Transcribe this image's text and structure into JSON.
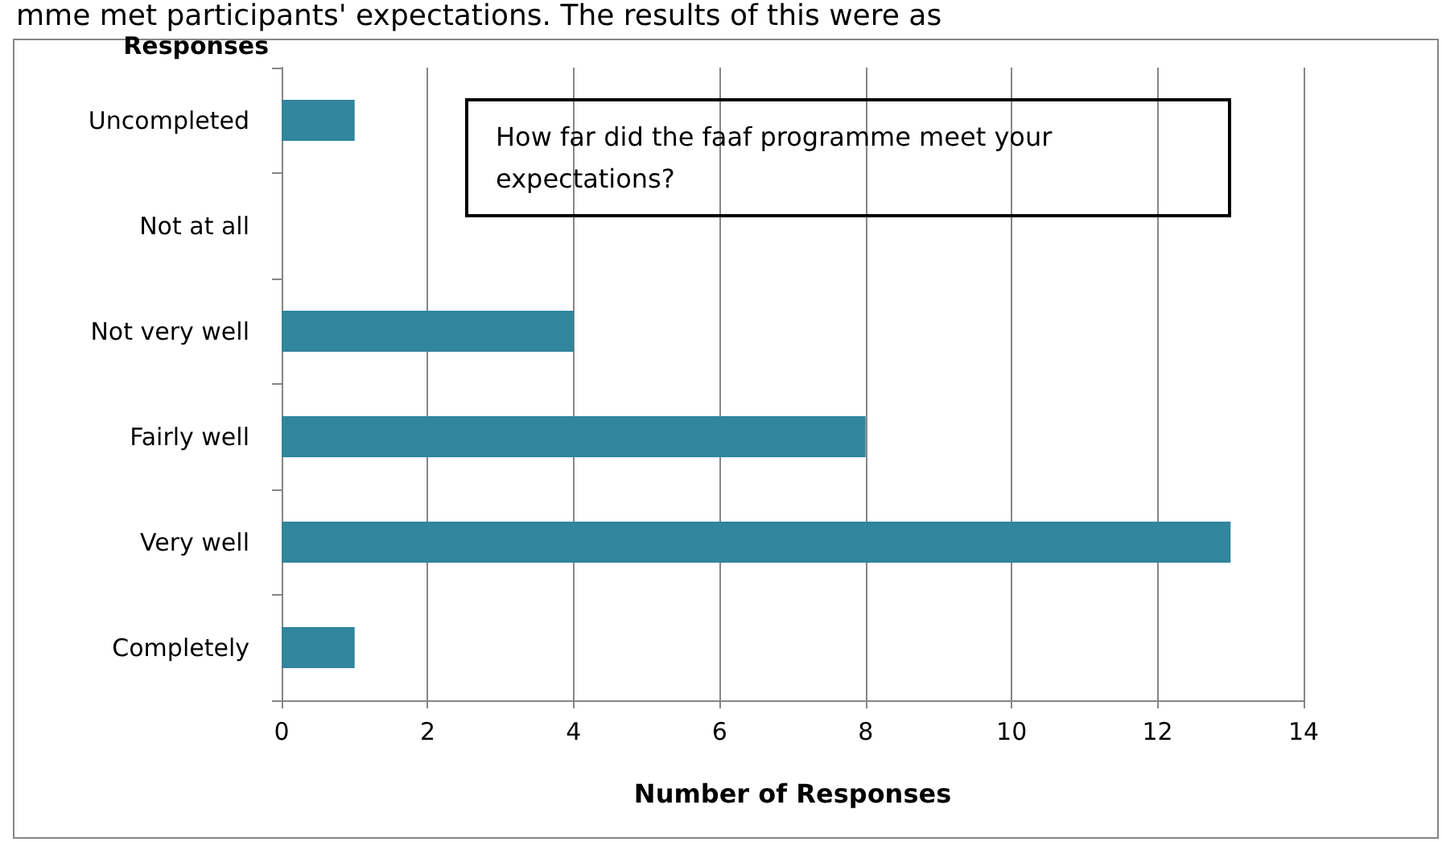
{
  "chart_data": {
    "type": "bar",
    "orientation": "horizontal",
    "title": "How far did the faaf programme meet your expectations?",
    "ylabel": "Responses",
    "xlabel": "Number of Responses",
    "annotations": [
      "mme met participants' expectations. The results of this were as"
    ],
    "categories": [
      "Uncompleted",
      "Not at all",
      "Not very well",
      "Fairly well",
      "Very well",
      "Completely"
    ],
    "values": [
      1,
      0,
      4,
      8,
      13,
      1
    ],
    "color": "#31859c",
    "xlim": [
      0,
      14
    ],
    "xticks": [
      0,
      2,
      4,
      6,
      8,
      10,
      12,
      14
    ],
    "grid": "x"
  }
}
